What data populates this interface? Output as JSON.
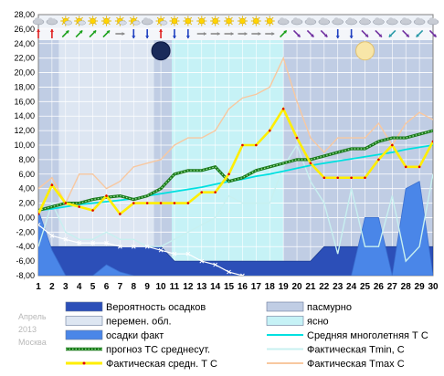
{
  "chart_data": {
    "type": "line",
    "title": "",
    "month": "Апрель",
    "year": "2013",
    "city": "Москва",
    "x": [
      1,
      2,
      3,
      4,
      5,
      6,
      7,
      8,
      9,
      10,
      11,
      12,
      13,
      14,
      15,
      16,
      17,
      18,
      19,
      20,
      21,
      22,
      23,
      24,
      25,
      26,
      27,
      28,
      29,
      30
    ],
    "ylim": [
      -8,
      28
    ],
    "ytick_step": 2,
    "sky_bands": [
      {
        "from": 1,
        "to": 2.5,
        "kind": "overcast"
      },
      {
        "from": 2.5,
        "to": 9.5,
        "kind": "variable"
      },
      {
        "from": 9.5,
        "to": 10.8,
        "kind": "overcast"
      },
      {
        "from": 10.8,
        "to": 19,
        "kind": "clear"
      },
      {
        "from": 19,
        "to": 30,
        "kind": "overcast"
      }
    ],
    "weather_icons": [
      "cloud",
      "cloud",
      "partly",
      "partly",
      "sun",
      "sun",
      "partly",
      "partly",
      "cloud",
      "partly",
      "sun",
      "sun",
      "sun",
      "sun",
      "sun",
      "sun",
      "sun",
      "sun",
      "cloud",
      "cloud",
      "cloud",
      "cloud",
      "cloud",
      "cloud",
      "cloud",
      "cloud",
      "cloud",
      "cloud",
      "cloud",
      "cloud"
    ],
    "wind_dirs": [
      "N",
      "N",
      "NE",
      "NE",
      "NE",
      "NE",
      "E",
      "S",
      "S",
      "N",
      "S",
      "S",
      "E",
      "E",
      "E",
      "E",
      "E",
      "E",
      "NE",
      "SE",
      "SE",
      "SE",
      "S",
      "S",
      "SE",
      "SE",
      "SW",
      "SE",
      "SW",
      "SE"
    ],
    "moon": [
      {
        "day": 10,
        "phase": "new"
      },
      {
        "day": 25,
        "phase": "full"
      }
    ],
    "series": [
      {
        "name": "Вероятность осадков",
        "kind": "prob_area",
        "color": "#2c4fb8",
        "values": [
          0,
          0,
          0,
          0,
          0,
          0,
          0,
          0,
          0,
          0,
          0,
          0,
          0,
          0,
          0,
          0,
          0,
          0,
          0,
          0,
          0,
          0,
          0,
          0,
          0,
          0,
          0,
          0,
          0,
          0
        ],
        "top": [
          -4,
          -4,
          -4,
          -4,
          -4,
          -4,
          -4,
          -4,
          -4,
          -4,
          -6,
          -6,
          -6,
          -6,
          -6,
          -6,
          -6,
          -6,
          -6,
          -6,
          -6,
          -4,
          -4,
          -4,
          -4,
          -4,
          -4,
          -4,
          -4,
          -4
        ]
      },
      {
        "name": "осадки факт",
        "kind": "precip",
        "color": "#4a86e8",
        "values": [
          1,
          -4.5,
          -8,
          -8,
          -8,
          -6.5,
          -7.5,
          -8,
          -8,
          -8,
          -8,
          -8,
          -8,
          -8,
          -8,
          -8,
          -8,
          -8,
          -8,
          -8,
          -8,
          -8,
          -8,
          -8,
          0,
          0,
          -8,
          4,
          5,
          -8
        ]
      },
      {
        "name": "прогноз ТС среднесут.",
        "color": "#1a7a1a",
        "values": [
          1,
          1.5,
          2,
          2,
          2.5,
          2.8,
          3,
          2.5,
          3,
          4,
          6,
          6.5,
          6.5,
          7,
          5,
          5.5,
          6.5,
          7,
          7.5,
          8,
          8,
          8.5,
          9,
          9.5,
          9.5,
          10.5,
          11,
          11,
          11.5,
          12
        ]
      },
      {
        "name": "Фактическая средн. Т С",
        "color": "#ffee00",
        "values": [
          0.5,
          4.5,
          2,
          1.5,
          1,
          3,
          0.5,
          2,
          2,
          2,
          2,
          2,
          3.5,
          3.5,
          6,
          10,
          10,
          12,
          15,
          11,
          7.5,
          5.5,
          5.5,
          5.5,
          5.5,
          8,
          10,
          7,
          7,
          10.5
        ]
      },
      {
        "name": "Средняя многолетняя Т С",
        "color": "#00e0e0",
        "values": [
          1,
          1.2,
          1.5,
          1.8,
          2,
          2.2,
          2.4,
          2.6,
          3,
          3.3,
          3.6,
          3.9,
          4.2,
          4.6,
          5,
          5.3,
          5.7,
          6,
          6.4,
          6.8,
          7.2,
          7.5,
          7.8,
          8.1,
          8.4,
          8.7,
          9,
          9.4,
          9.7,
          10
        ]
      },
      {
        "name": "Фактическая Tmin, C",
        "color": "#c8f0f0",
        "values": [
          -4,
          2,
          -2,
          -3,
          -3,
          -2,
          -3,
          -3,
          -4,
          -4,
          -3,
          -2,
          -1,
          0,
          3,
          2,
          2,
          2,
          7,
          10,
          5,
          2,
          -5,
          4,
          -4,
          -4,
          3,
          -6,
          -4,
          6
        ]
      },
      {
        "name": "Фактическая Tmax C",
        "color": "#f8c8a0",
        "values": [
          4,
          5.5,
          2,
          6,
          6,
          4,
          5,
          7,
          7.5,
          8,
          10,
          11,
          11,
          12,
          15,
          16.5,
          17,
          18,
          22,
          16,
          11,
          9,
          11,
          11,
          11,
          13,
          10,
          13,
          14.5,
          13.5
        ]
      },
      {
        "name": "прогноз min",
        "kind": "forecast_min",
        "color": "#ffffff",
        "values": [
          -1,
          -2.5,
          -3,
          -3.5,
          -3.5,
          -3.5,
          -4,
          -4,
          -4,
          -4.5,
          -5,
          -5,
          -6,
          -6.5,
          -7.5,
          -8,
          -8.5,
          null,
          null,
          null,
          null,
          null,
          null,
          null,
          null,
          null,
          null,
          null,
          null,
          null
        ]
      }
    ]
  },
  "legend": {
    "items": [
      {
        "label": "Вероятность осадков",
        "swatch": "#2c4fb8",
        "kind": "box"
      },
      {
        "label": "пасмурно",
        "swatch": "#c0cde4",
        "kind": "box"
      },
      {
        "label": "перемен. обл.",
        "swatch": "#dde6f2",
        "kind": "box"
      },
      {
        "label": "ясно",
        "swatch": "#c6f2f6",
        "kind": "box"
      },
      {
        "label": "осадки факт",
        "swatch": "#4a86e8",
        "kind": "box"
      },
      {
        "label": "Средняя многолетняя Т С",
        "swatch": "#00e0e0",
        "kind": "line"
      },
      {
        "label": "прогноз ТС среднесут.",
        "swatch": "#1a7a1a",
        "kind": "dotline"
      },
      {
        "label": "Фактическая Tmin, C",
        "swatch": "#c8f0f0",
        "kind": "line"
      },
      {
        "label": "Фактическая средн. Т С",
        "swatch": "#ffee00",
        "kind": "markerline"
      },
      {
        "label": "Фактическая Tmax C",
        "swatch": "#f8c8a0",
        "kind": "line"
      }
    ]
  }
}
